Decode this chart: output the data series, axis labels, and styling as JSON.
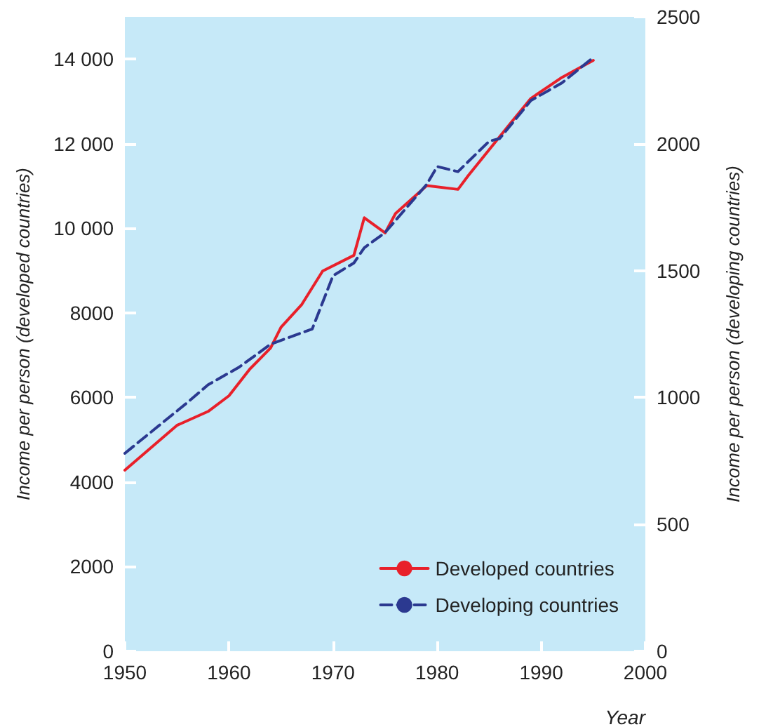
{
  "chart_data": {
    "type": "line",
    "xlabel": "Year",
    "ylabel": "Income per person (developed countries)",
    "y2label": "Income per person (developing countries)",
    "xlim": [
      1950,
      2000
    ],
    "xticks": [
      1950,
      1960,
      1970,
      1980,
      1990,
      2000
    ],
    "ylim": [
      0,
      15000
    ],
    "yticks": [
      0,
      2000,
      4000,
      6000,
      8000,
      {
        "value": 10000,
        "label": "10 000"
      },
      {
        "value": 12000,
        "label": "12 000"
      },
      {
        "value": 14000,
        "label": "14 000"
      }
    ],
    "y2lim": [
      0,
      2500
    ],
    "y2ticks": [
      0,
      500,
      1000,
      1500,
      2000,
      2500
    ],
    "legend": "bottom right",
    "grid": false,
    "marker": "none",
    "series": [
      {
        "name": "Developed countries",
        "color": "#e8202a",
        "line_style": "solid",
        "x": [
          1950,
          1955,
          1958,
          1960,
          1962,
          1964,
          1965,
          1967,
          1969,
          1972,
          1973,
          1975,
          1976,
          1979,
          1982,
          1983,
          1987,
          1989,
          1992,
          1995
        ],
        "values": [
          4280,
          5340,
          5670,
          6040,
          6670,
          7170,
          7660,
          8200,
          8990,
          9360,
          10250,
          9890,
          10350,
          11010,
          10920,
          11250,
          12470,
          13070,
          13570,
          13970
        ]
      },
      {
        "name": "Developing countries",
        "color": "#2b3990",
        "line_style": "dashed",
        "axis": "y2",
        "x": [
          1950,
          1953,
          1956,
          1958,
          1961,
          1964,
          1968,
          1970,
          1972,
          1973,
          1975,
          1979,
          1980,
          1982,
          1985,
          1986,
          1989,
          1992,
          1995
        ],
        "values": [
          780,
          880,
          980,
          1050,
          1120,
          1210,
          1270,
          1480,
          1530,
          1590,
          1650,
          1840,
          1910,
          1890,
          2010,
          2020,
          2170,
          2240,
          2340
        ]
      }
    ]
  }
}
